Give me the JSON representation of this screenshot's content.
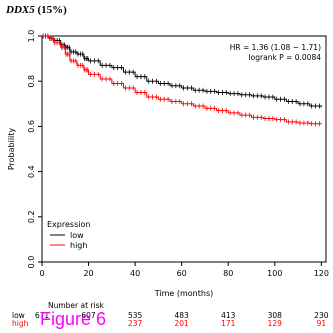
{
  "header": {
    "gene": "DDX5",
    "percent": "(15%)"
  },
  "figure_label": "Figure 6",
  "chart_data": {
    "type": "line",
    "title": "",
    "xlabel": "Time (months)",
    "ylabel": "Probability",
    "xlim": [
      0,
      122
    ],
    "ylim": [
      0,
      1
    ],
    "xticks": [
      0,
      20,
      40,
      60,
      80,
      100,
      120
    ],
    "yticks": [
      0.0,
      0.2,
      0.4,
      0.6,
      0.8,
      1.0
    ],
    "xtick_labels": [
      "0",
      "20",
      "40",
      "60",
      "80",
      "100",
      "120"
    ],
    "ytick_labels": [
      "0.0",
      "0.2",
      "0.4",
      "0.6",
      "0.8",
      "1.0"
    ],
    "annotation": {
      "hr": "HR = 1.36 (1.08 − 1.71)",
      "logrank": "logrank P = 0.0084"
    },
    "legend": {
      "title": "Expression",
      "position": "bottom-left"
    },
    "series": [
      {
        "name": "low",
        "color": "#000000",
        "x": [
          0,
          3,
          5,
          8,
          10,
          12,
          15,
          18,
          20,
          25,
          30,
          35,
          40,
          45,
          50,
          55,
          60,
          65,
          70,
          75,
          80,
          85,
          90,
          95,
          100,
          105,
          110,
          115,
          120
        ],
        "y": [
          1.0,
          0.99,
          0.98,
          0.96,
          0.95,
          0.93,
          0.92,
          0.9,
          0.89,
          0.87,
          0.86,
          0.84,
          0.82,
          0.8,
          0.79,
          0.78,
          0.77,
          0.76,
          0.755,
          0.75,
          0.745,
          0.74,
          0.735,
          0.73,
          0.72,
          0.71,
          0.7,
          0.69,
          0.685
        ]
      },
      {
        "name": "high",
        "color": "#ff0000",
        "x": [
          0,
          3,
          5,
          8,
          10,
          12,
          15,
          18,
          20,
          25,
          30,
          35,
          40,
          45,
          50,
          55,
          60,
          65,
          70,
          75,
          80,
          85,
          90,
          95,
          100,
          105,
          110,
          115,
          120
        ],
        "y": [
          1.0,
          0.99,
          0.97,
          0.95,
          0.92,
          0.89,
          0.87,
          0.85,
          0.83,
          0.81,
          0.79,
          0.77,
          0.75,
          0.73,
          0.72,
          0.71,
          0.7,
          0.69,
          0.68,
          0.67,
          0.66,
          0.65,
          0.64,
          0.635,
          0.63,
          0.62,
          0.615,
          0.612,
          0.61
        ]
      }
    ],
    "risk_table": {
      "title": "Number at risk",
      "rows": [
        {
          "label": "low",
          "color": "#000000",
          "values": [
            "671",
            "607",
            "535",
            "483",
            "413",
            "308",
            "230"
          ]
        },
        {
          "label": "high",
          "color": "#ff0000",
          "values": [
            "",
            "",
            "237",
            "201",
            "171",
            "129",
            "91"
          ]
        }
      ]
    }
  }
}
